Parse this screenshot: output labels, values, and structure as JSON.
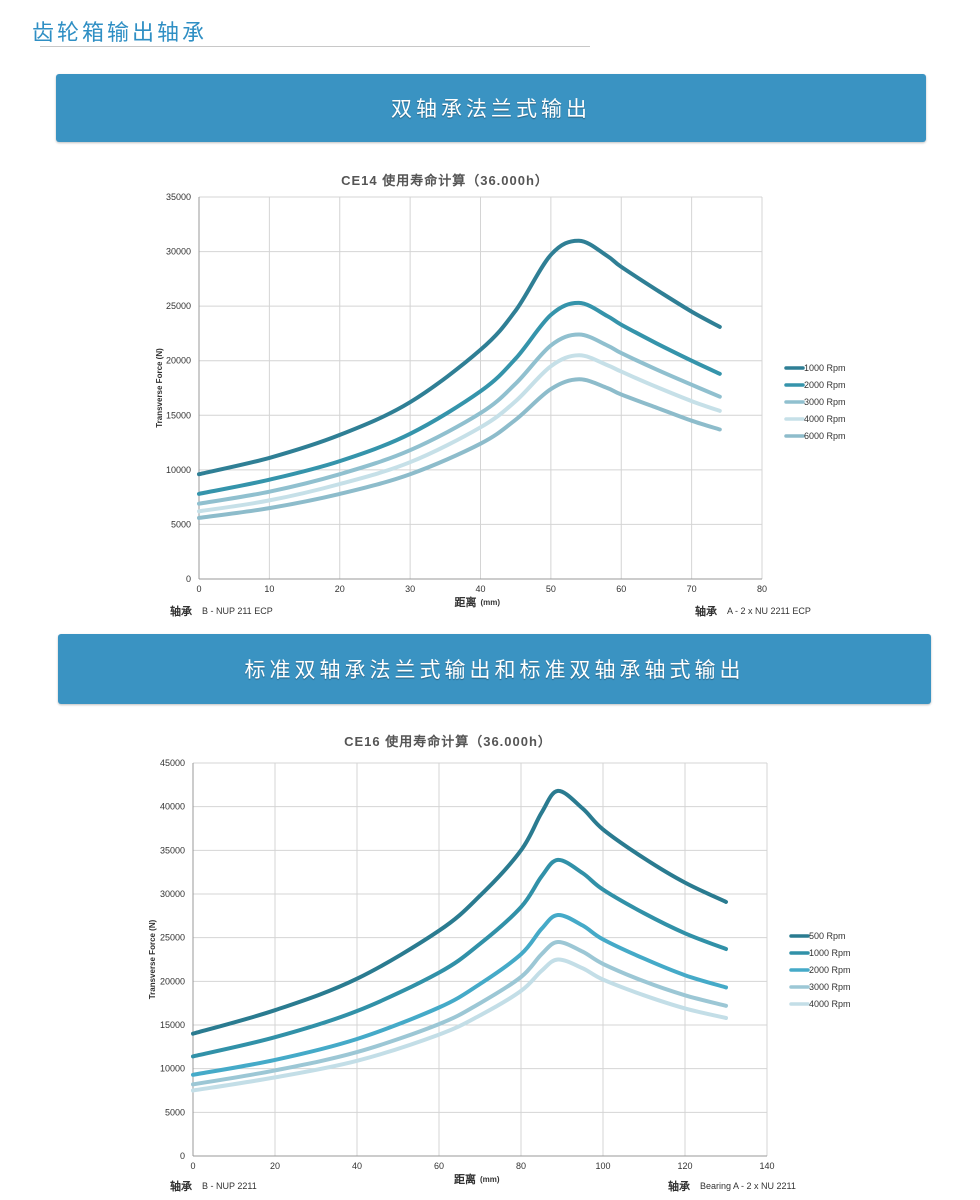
{
  "header": {
    "title": "齿轮箱输出轴承"
  },
  "sections": [
    {
      "banner": "双轴承法兰式输出"
    },
    {
      "banner": "标准双轴承法兰式输出和标准双轴承轴式输出"
    }
  ],
  "chart_data": [
    {
      "type": "line",
      "title": "CE14    使用寿命计算（36.000h）",
      "xlabel": "距离",
      "xunit": "(mm)",
      "ylabel": "Transverse Force (N)",
      "xlim": [
        0,
        80
      ],
      "ylim": [
        0,
        35000
      ],
      "xticks": [
        0,
        10,
        20,
        30,
        40,
        50,
        60,
        70,
        80
      ],
      "yticks": [
        0,
        5000,
        10000,
        15000,
        20000,
        25000,
        30000,
        35000
      ],
      "grid": true,
      "legend": "right",
      "bearing_left": {
        "label": "轴承",
        "value": "B - NUP 211 ECP"
      },
      "bearing_right": {
        "label": "轴承",
        "value": "A - 2 x NU 2211 ECP"
      },
      "x": [
        0,
        10,
        20,
        30,
        40,
        45,
        50,
        54,
        58,
        60,
        65,
        70,
        74
      ],
      "series": [
        {
          "name": "1000 Rpm",
          "color": "#2f7f95",
          "values": [
            9600,
            11100,
            13200,
            16200,
            21000,
            24600,
            29700,
            31000,
            29600,
            28600,
            26500,
            24500,
            23100
          ]
        },
        {
          "name": "2000 Rpm",
          "color": "#3594ab",
          "values": [
            7800,
            9100,
            10800,
            13300,
            17200,
            20200,
            24200,
            25300,
            24100,
            23300,
            21600,
            20000,
            18800
          ]
        },
        {
          "name": "3000 Rpm",
          "color": "#90c0cf",
          "values": [
            6900,
            8000,
            9600,
            11800,
            15200,
            17900,
            21400,
            22400,
            21400,
            20700,
            19200,
            17800,
            16700
          ]
        },
        {
          "name": "4000 Rpm",
          "color": "#c6e0e8",
          "values": [
            6200,
            7200,
            8700,
            10700,
            13900,
            16300,
            19500,
            20500,
            19600,
            19000,
            17600,
            16300,
            15400
          ]
        },
        {
          "name": "6000 Rpm",
          "color": "#8dbccb",
          "values": [
            5600,
            6500,
            7800,
            9600,
            12400,
            14600,
            17400,
            18300,
            17500,
            16900,
            15700,
            14500,
            13700
          ]
        }
      ]
    },
    {
      "type": "line",
      "title": "CE16    使用寿命计算（36.000h）",
      "xlabel": "距离",
      "xunit": "(mm)",
      "ylabel": "Transverse Force (N)",
      "xlim": [
        0,
        140
      ],
      "ylim": [
        0,
        45000
      ],
      "xticks": [
        0,
        20,
        40,
        60,
        80,
        100,
        120,
        140
      ],
      "yticks": [
        0,
        5000,
        10000,
        15000,
        20000,
        25000,
        30000,
        35000,
        40000,
        45000
      ],
      "grid": true,
      "legend": "right",
      "bearing_left": {
        "label": "轴承",
        "value": "B - NUP 2211"
      },
      "bearing_right": {
        "label": "轴承",
        "value": "Bearing A - 2 x NU 2211"
      },
      "x": [
        0,
        20,
        40,
        60,
        70,
        80,
        85,
        89,
        95,
        100,
        110,
        120,
        130
      ],
      "series": [
        {
          "name": "500 Rpm",
          "color": "#2a7b90",
          "values": [
            14000,
            16700,
            20300,
            25800,
            29800,
            35000,
            39300,
            41800,
            39800,
            37400,
            34100,
            31300,
            29100
          ]
        },
        {
          "name": "1000 Rpm",
          "color": "#3191a8",
          "values": [
            11400,
            13600,
            16600,
            21000,
            24300,
            28500,
            32000,
            33900,
            32400,
            30500,
            27800,
            25500,
            23700
          ]
        },
        {
          "name": "2000 Rpm",
          "color": "#45aac8",
          "values": [
            9300,
            11000,
            13400,
            17000,
            19700,
            23100,
            26000,
            27600,
            26400,
            24800,
            22600,
            20700,
            19300
          ]
        },
        {
          "name": "3000 Rpm",
          "color": "#9cc7d5",
          "values": [
            8200,
            9800,
            11900,
            15100,
            17500,
            20500,
            23100,
            24500,
            23400,
            22000,
            20000,
            18400,
            17200
          ]
        },
        {
          "name": "4000 Rpm",
          "color": "#c3dee7",
          "values": [
            7500,
            9000,
            10900,
            13900,
            16100,
            18900,
            21200,
            22500,
            21500,
            20200,
            18400,
            16900,
            15800
          ]
        }
      ]
    }
  ]
}
